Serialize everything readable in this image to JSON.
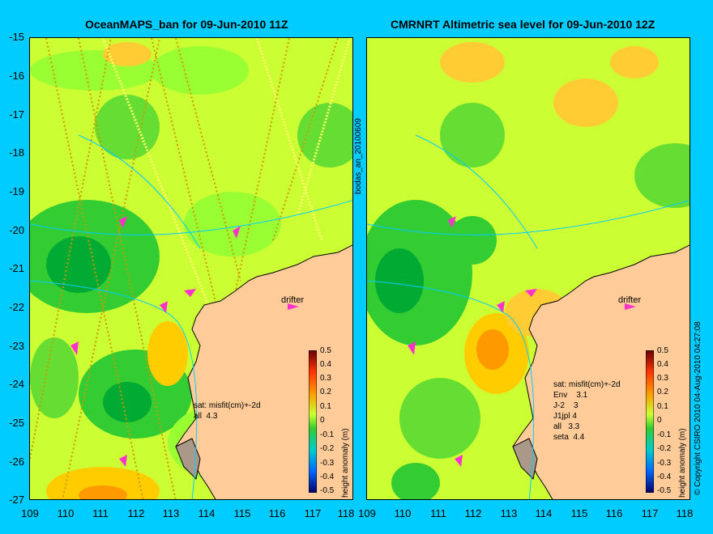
{
  "left_panel": {
    "title": "OceanMAPS_ban for 09-Jun-2010 11Z",
    "drifter_label": "drifter",
    "sat_text": "sat: misfit(cm)+-2d\nall  4.3"
  },
  "right_panel": {
    "title": "CMRNRT Altimetric sea level  for 09-Jun-2010 12Z",
    "drifter_label": "drifter",
    "sat_text": "sat: misfit(cm)+-2d\nEnv    3.1\nJ-2    3\nJ1jpl 4\nall   3.3\nseta  4.4"
  },
  "axes": {
    "lat_ticks": [
      "-15",
      "-16",
      "-17",
      "-18",
      "-19",
      "-20",
      "-21",
      "-22",
      "-23",
      "-24",
      "-25",
      "-26",
      "-27"
    ],
    "lon_ticks": [
      "109",
      "110",
      "111",
      "112",
      "113",
      "114",
      "115",
      "116",
      "117",
      "118"
    ]
  },
  "colorbar": {
    "ticks": [
      "0.5",
      "0.4",
      "0.3",
      "0.2",
      "0.1",
      "0",
      "-0.1",
      "-0.2",
      "-0.3",
      "-0.4",
      "-0.5"
    ],
    "label": "height anomaly (m)"
  },
  "side_labels": {
    "middle": "bodas_an_20100609",
    "right": "© Copyright CSIRO 2010   04-Aug-2010 04:27:08"
  },
  "colors": {
    "background": "#00ccff",
    "land": "#ffcc99",
    "field_green": "#33cc33",
    "field_yellow": "#ccff33",
    "field_orange": "#ff9900",
    "drifter_arrow": "#ff33cc"
  }
}
